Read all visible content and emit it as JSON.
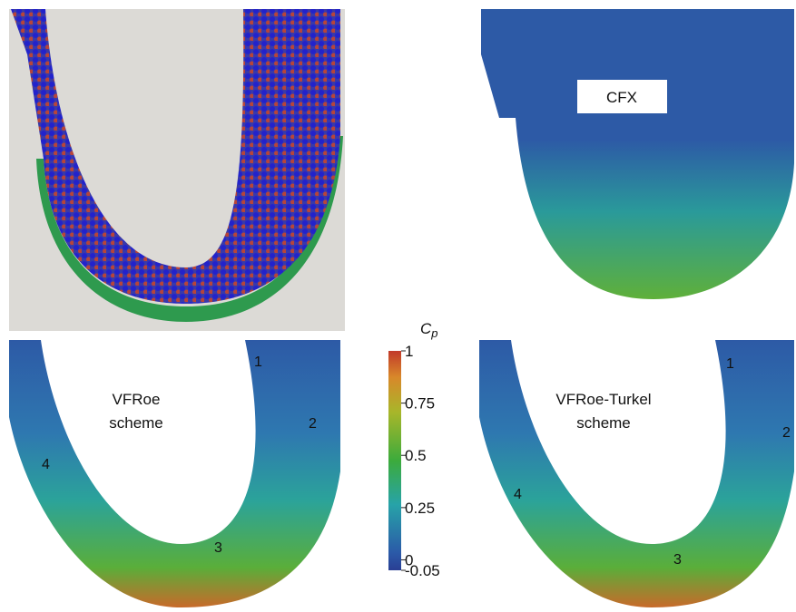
{
  "panels": [
    {
      "label": [
        "CFX"
      ]
    },
    {
      "label": [
        "VFRoe",
        "scheme"
      ],
      "markers": [
        "1",
        "2",
        "3",
        "4"
      ]
    },
    {
      "label": [
        "VFRoe-Turkel",
        "scheme"
      ],
      "markers": [
        "1",
        "2",
        "3",
        "4"
      ]
    }
  ],
  "colorbar": {
    "symbol": "C",
    "subscript": "p",
    "lim": [
      -0.05,
      1
    ],
    "ticks": [
      1,
      0.75,
      0.5,
      0.25,
      0,
      -0.05
    ]
  }
}
